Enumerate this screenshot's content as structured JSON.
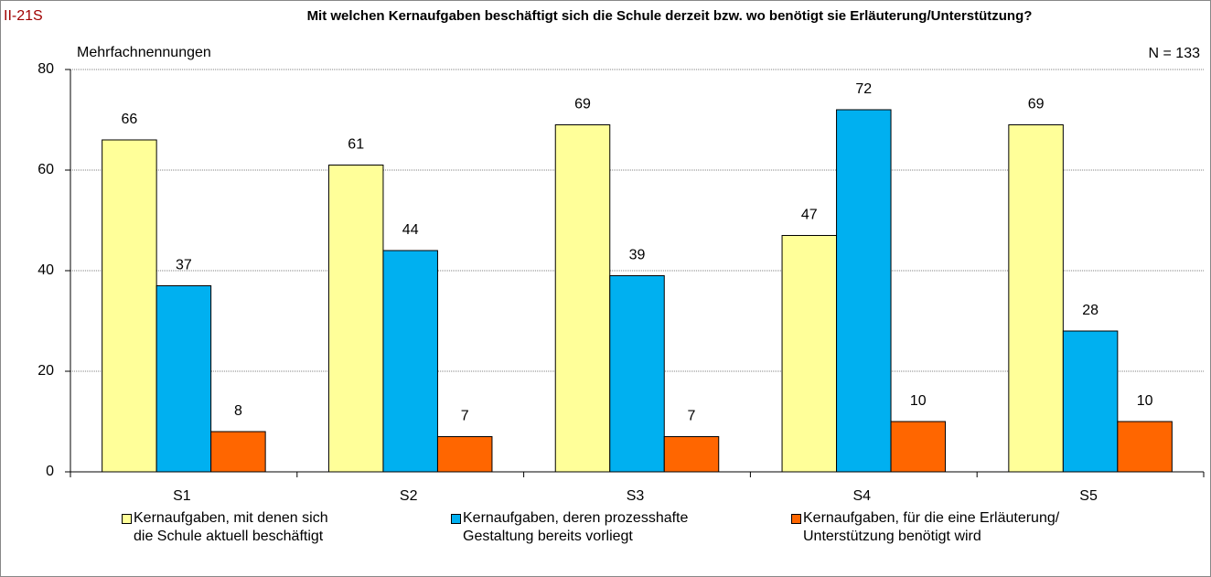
{
  "chart_data": {
    "type": "bar",
    "code": "II-21S",
    "title": "Mit welchen Kernaufgaben beschäftigt sich die Schule derzeit bzw. wo benötigt sie Erläuterung/Unterstützung?",
    "subtitle": "Mehrfachnennungen",
    "annotation": "N = 133",
    "categories": [
      "S1",
      "S2",
      "S3",
      "S4",
      "S5"
    ],
    "series": [
      {
        "name": "Kernaufgaben, mit denen sich\ndie Schule aktuell beschäftigt",
        "color": "#ffff99",
        "values": [
          66,
          61,
          69,
          47,
          69
        ]
      },
      {
        "name": "Kernaufgaben, deren prozesshafte\nGestaltung bereits vorliegt",
        "color": "#00b0f0",
        "values": [
          37,
          44,
          39,
          72,
          28
        ]
      },
      {
        "name": "Kernaufgaben, für die eine Erläuterung/\nUnterstützung benötigt wird",
        "color": "#ff6600",
        "values": [
          8,
          7,
          7,
          10,
          10
        ]
      }
    ],
    "ylim": [
      0,
      80
    ],
    "yticks": [
      0,
      20,
      40,
      60,
      80
    ],
    "grid": true,
    "legend": "bottom"
  }
}
